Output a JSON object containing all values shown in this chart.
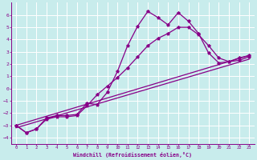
{
  "xlabel": "Windchill (Refroidissement éolien,°C)",
  "background_color": "#c8ecec",
  "grid_color": "#ffffff",
  "line_color": "#880088",
  "xlim": [
    -0.5,
    23.5
  ],
  "ylim": [
    -4.5,
    7.0
  ],
  "xticks": [
    0,
    1,
    2,
    3,
    4,
    5,
    6,
    7,
    8,
    9,
    10,
    11,
    12,
    13,
    14,
    15,
    16,
    17,
    18,
    19,
    20,
    21,
    22,
    23
  ],
  "yticks": [
    -4,
    -3,
    -2,
    -1,
    0,
    1,
    2,
    3,
    4,
    5,
    6
  ],
  "line1_x": [
    0,
    1,
    2,
    3,
    4,
    5,
    6,
    7,
    8,
    9,
    10,
    11,
    12,
    13,
    14,
    15,
    16,
    17,
    18,
    19,
    20,
    21,
    22,
    23
  ],
  "line1_y": [
    -3.0,
    -3.6,
    -3.3,
    -2.4,
    -2.2,
    -2.2,
    -2.1,
    -1.2,
    -1.3,
    -0.3,
    1.4,
    3.5,
    5.1,
    6.3,
    5.8,
    5.2,
    6.2,
    5.5,
    4.5,
    2.9,
    2.1,
    2.2,
    2.5,
    2.7
  ],
  "line2_x": [
    0,
    1,
    2,
    3,
    4,
    5,
    6,
    7,
    8,
    9,
    10,
    11,
    12,
    13,
    14,
    15,
    16,
    17,
    18,
    19,
    20,
    21,
    22,
    23
  ],
  "line2_y": [
    -3.0,
    -3.6,
    -3.3,
    -2.5,
    -2.3,
    -2.3,
    -2.2,
    -1.4,
    -0.5,
    0.2,
    0.9,
    1.7,
    2.6,
    3.5,
    4.1,
    4.5,
    5.0,
    5.0,
    4.4,
    3.5,
    2.5,
    2.2,
    2.3,
    2.6
  ],
  "line3_x": [
    0,
    23
  ],
  "line3_y": [
    -3.0,
    2.7
  ],
  "line4_x": [
    0,
    23
  ],
  "line4_y": [
    -3.2,
    2.4
  ]
}
